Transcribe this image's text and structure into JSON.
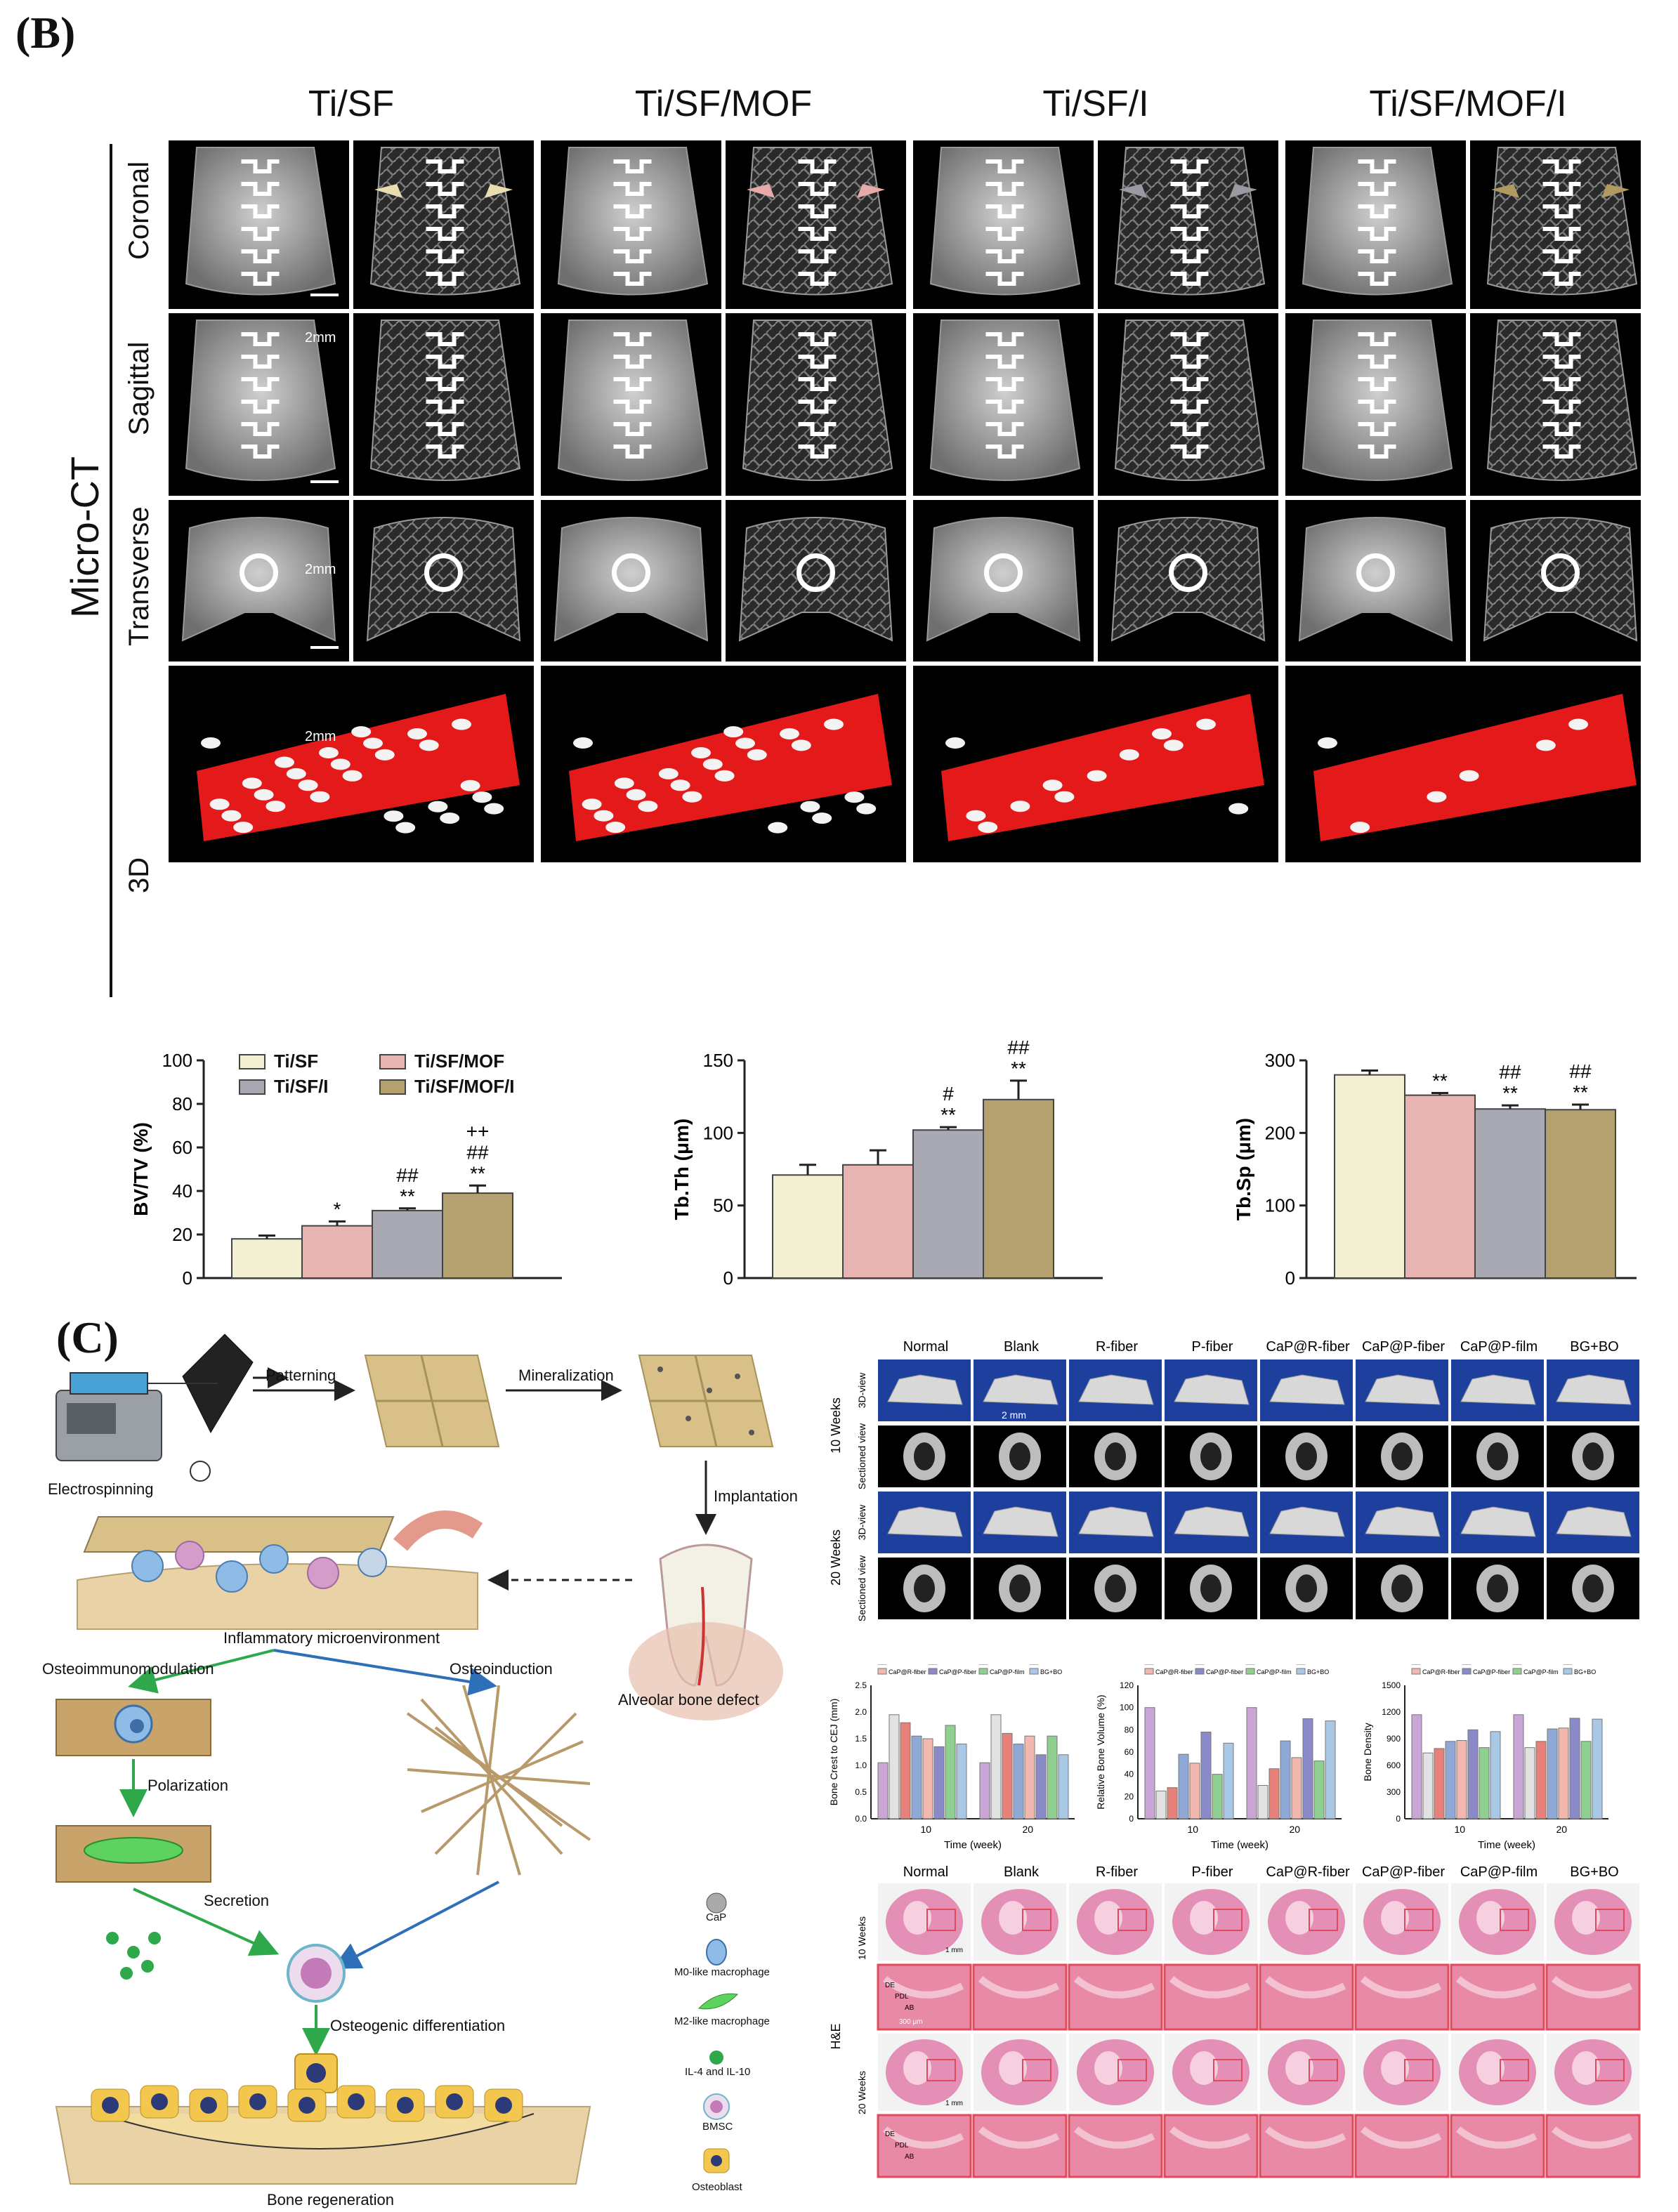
{
  "panel_b": {
    "letter": "(B)",
    "side_label": "Micro-CT",
    "columns": [
      "Ti/SF",
      "Ti/SF/MOF",
      "Ti/SF/I",
      "Ti/SF/MOF/I"
    ],
    "rows": [
      "Coronal",
      "Sagittal",
      "Transverse",
      "3D"
    ],
    "scalebar": "2mm"
  },
  "chart_data": [
    {
      "type": "bar",
      "categories": [
        "Ti/SF",
        "Ti/SF/MOF",
        "Ti/SF/I",
        "Ti/SF/MOF/I"
      ],
      "values": [
        18,
        24,
        31,
        39
      ],
      "errors": [
        1.5,
        2,
        1,
        3.5
      ],
      "significance": [
        "",
        "*",
        "##\n**",
        "++\n##\n**"
      ],
      "ylabel": "BV/TV (%)",
      "ylim": [
        0,
        100
      ],
      "yticks": [
        "0",
        "20",
        "40",
        "60",
        "80",
        "100"
      ],
      "legend": [
        "Ti/SF",
        "Ti/SF/MOF",
        "Ti/SF/I",
        "Ti/SF/MOF/I"
      ],
      "colors": [
        "#f3efd2",
        "#e8b4b2",
        "#a9a9b3",
        "#b5a16f"
      ]
    },
    {
      "type": "bar",
      "categories": [
        "Ti/SF",
        "Ti/SF/MOF",
        "Ti/SF/I",
        "Ti/SF/MOF/I"
      ],
      "values": [
        71,
        78,
        102,
        123
      ],
      "errors": [
        7,
        10,
        2,
        13
      ],
      "significance": [
        "",
        "",
        "#\n**",
        "+\n##\n**"
      ],
      "ylabel": "Tb.Th (μm)",
      "ylim": [
        0,
        150
      ],
      "yticks": [
        "0",
        "50",
        "100",
        "150"
      ],
      "colors": [
        "#f3efd2",
        "#e8b4b2",
        "#a9a9b3",
        "#b5a16f"
      ]
    },
    {
      "type": "bar",
      "categories": [
        "Ti/SF",
        "Ti/SF/MOF",
        "Ti/SF/I",
        "Ti/SF/MOF/I"
      ],
      "values": [
        280,
        252,
        233,
        232
      ],
      "errors": [
        6,
        3,
        5,
        7
      ],
      "significance": [
        "",
        "**",
        "##\n**",
        "##\n**"
      ],
      "ylabel": "Tb.Sp (μm)",
      "ylim": [
        0,
        300
      ],
      "yticks": [
        "0",
        "100",
        "200",
        "300"
      ],
      "colors": [
        "#f3efd2",
        "#e8b4b2",
        "#a9a9b3",
        "#b5a16f"
      ]
    }
  ],
  "panel_c": {
    "letter": "(C)",
    "schematic": {
      "electrospinning": "Electrospinning",
      "patterning": "Patterning",
      "mineralization": "Mineralization",
      "implantation": "Implantation",
      "inflammatory": "Inflammatory microenvironment",
      "alveolar": "Alveolar bone defect",
      "osteoimmunomodulation": "Osteoimmunomodulation",
      "osteoinduction": "Osteoinduction",
      "polarization": "Polarization",
      "secretion": "Secretion",
      "osteogenic": "Osteogenic differentiation",
      "regeneration": "Bone regeneration"
    },
    "legend": [
      "CaP",
      "M0-like macrophage",
      "M2-like macrophage",
      "IL-4 and IL-10",
      "BMSC",
      "Osteoblast"
    ],
    "groups": [
      "Normal",
      "Blank",
      "R-fiber",
      "P-fiber",
      "CaP@R-fiber",
      "CaP@P-fiber",
      "CaP@P-film",
      "BG+BO"
    ],
    "ct_rows": [
      "10 Weeks",
      "20 Weeks"
    ],
    "ct_subrows": [
      "3D-view",
      "Sectioned view"
    ],
    "ct_scale": "2 mm",
    "mini_charts": [
      {
        "ylabel": "Bone Crest to CEJ (mm)",
        "xlabel": "Time (week)",
        "xticks": [
          "10",
          "20"
        ],
        "yticks": [
          "0.0",
          "0.5",
          "1.0",
          "1.5",
          "2.0",
          "2.5"
        ]
      },
      {
        "ylabel": "Relative Bone Volume (%)",
        "xlabel": "Time (week)",
        "xticks": [
          "10",
          "20"
        ],
        "yticks": [
          "0",
          "20",
          "40",
          "60",
          "80",
          "100",
          "120"
        ]
      },
      {
        "ylabel": "Bone Density",
        "xlabel": "Time (week)",
        "xticks": [
          "10",
          "20"
        ],
        "yticks": [
          "0",
          "300",
          "600",
          "900",
          "1200",
          "1500"
        ]
      }
    ],
    "mini_values": [
      [
        [
          1.05,
          1.95,
          1.8,
          1.55,
          1.5,
          1.35,
          1.75,
          1.4
        ],
        [
          1.05,
          1.95,
          1.6,
          1.4,
          1.55,
          1.2,
          1.55,
          1.2
        ]
      ],
      [
        [
          100,
          25,
          28,
          58,
          50,
          78,
          40,
          68
        ],
        [
          100,
          30,
          45,
          70,
          55,
          90,
          52,
          88
        ]
      ],
      [
        [
          1170,
          740,
          790,
          870,
          880,
          1000,
          800,
          980
        ],
        [
          1170,
          800,
          870,
          1010,
          1020,
          1130,
          870,
          1120
        ]
      ]
    ],
    "mini_colors": [
      "#c9a6d6",
      "#e2e2e2",
      "#e8807a",
      "#8fa8d6",
      "#f2b8b0",
      "#8a8ac9",
      "#8fcf8f",
      "#a8c8e6"
    ],
    "he_label": "H&E",
    "he_scale": "1 mm",
    "he_scale_zoom": "300 μm",
    "he_annotations": [
      "DE",
      "PDL",
      "AB"
    ]
  }
}
